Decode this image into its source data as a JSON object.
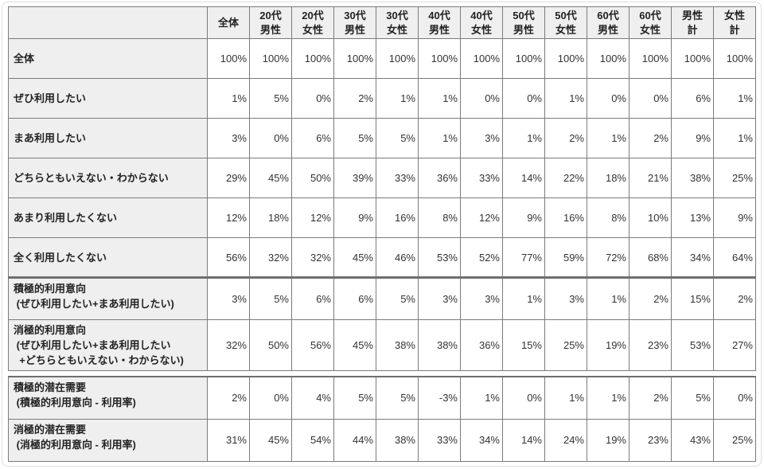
{
  "table": {
    "corner_label": "",
    "columns": [
      [
        "全体"
      ],
      [
        "20代",
        "男性"
      ],
      [
        "20代",
        "女性"
      ],
      [
        "30代",
        "男性"
      ],
      [
        "30代",
        "女性"
      ],
      [
        "40代",
        "男性"
      ],
      [
        "40代",
        "女性"
      ],
      [
        "50代",
        "男性"
      ],
      [
        "50代",
        "女性"
      ],
      [
        "60代",
        "男性"
      ],
      [
        "60代",
        "女性"
      ],
      [
        "男性",
        "計"
      ],
      [
        "女性",
        "計"
      ]
    ],
    "rows_main": [
      {
        "lines": [
          "全体"
        ],
        "values": [
          "100%",
          "100%",
          "100%",
          "100%",
          "100%",
          "100%",
          "100%",
          "100%",
          "100%",
          "100%",
          "100%",
          "100%",
          "100%"
        ]
      },
      {
        "lines": [
          "ぜひ利用したい"
        ],
        "values": [
          "1%",
          "5%",
          "0%",
          "2%",
          "1%",
          "1%",
          "0%",
          "0%",
          "1%",
          "0%",
          "0%",
          "6%",
          "1%"
        ]
      },
      {
        "lines": [
          "まあ利用したい"
        ],
        "values": [
          "3%",
          "0%",
          "6%",
          "5%",
          "5%",
          "1%",
          "3%",
          "1%",
          "2%",
          "1%",
          "2%",
          "9%",
          "1%"
        ]
      },
      {
        "lines": [
          "どちらともいえない・わからない"
        ],
        "values": [
          "29%",
          "45%",
          "50%",
          "39%",
          "33%",
          "36%",
          "33%",
          "14%",
          "22%",
          "18%",
          "21%",
          "38%",
          "25%"
        ]
      },
      {
        "lines": [
          "あまり利用したくない"
        ],
        "values": [
          "12%",
          "18%",
          "12%",
          "9%",
          "16%",
          "8%",
          "12%",
          "9%",
          "16%",
          "8%",
          "10%",
          "13%",
          "9%"
        ]
      },
      {
        "lines": [
          "全く利用したくない"
        ],
        "values": [
          "56%",
          "32%",
          "32%",
          "45%",
          "46%",
          "53%",
          "52%",
          "77%",
          "59%",
          "72%",
          "68%",
          "34%",
          "64%"
        ]
      }
    ],
    "rows_summary": [
      {
        "lines": [
          "積極的利用意向",
          " (ぜひ利用したい+まあ利用したい)"
        ],
        "values": [
          "3%",
          "5%",
          "6%",
          "6%",
          "5%",
          "3%",
          "3%",
          "1%",
          "3%",
          "1%",
          "2%",
          "15%",
          "2%"
        ]
      },
      {
        "lines": [
          "消極的利用意向",
          " (ぜひ利用したい+まあ利用したい",
          "  +どちらともいえない・わからない)"
        ],
        "values": [
          "32%",
          "50%",
          "56%",
          "45%",
          "38%",
          "38%",
          "36%",
          "15%",
          "25%",
          "19%",
          "23%",
          "53%",
          "27%"
        ]
      }
    ],
    "rows_potential": [
      {
        "lines": [
          "積極的潜在需要",
          " (積極的利用意向 - 利用率)"
        ],
        "values": [
          "2%",
          "0%",
          "4%",
          "5%",
          "5%",
          "-3%",
          "1%",
          "0%",
          "1%",
          "1%",
          "2%",
          "5%",
          "0%"
        ]
      },
      {
        "lines": [
          "消極的潜在需要",
          " (消極的利用意向 - 利用率)"
        ],
        "values": [
          "31%",
          "45%",
          "54%",
          "44%",
          "38%",
          "33%",
          "34%",
          "14%",
          "24%",
          "19%",
          "23%",
          "43%",
          "25%"
        ]
      }
    ]
  },
  "colors": {
    "header_bg": "#efefef",
    "border": "#7b7b7b",
    "thick_border": "#6f6f6f",
    "text": "#222222"
  }
}
